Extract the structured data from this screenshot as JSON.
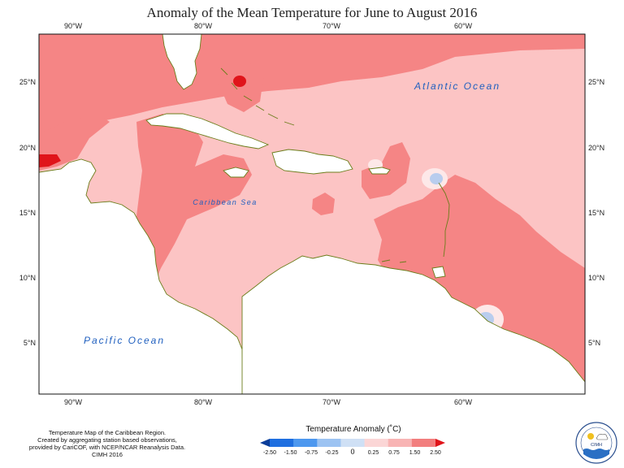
{
  "title": "Anomaly of the Mean Temperature for June to August 2016",
  "axes": {
    "lon_ticks": [
      "90°W",
      "80°W",
      "70°W",
      "60°W"
    ],
    "lat_ticks": [
      "25°N",
      "20°N",
      "15°N",
      "10°N",
      "5°N"
    ]
  },
  "labels": {
    "atlantic": "Atlantic Ocean",
    "caribbean": "Caribbean Sea",
    "pacific": "Pacific Ocean"
  },
  "footer": {
    "line1": "Temperature Map of the Caribbean Region.",
    "line2": "Created by aggregating station based observations,",
    "line3": "provided by CariCOF, with NCEP/NCAR Reanalysis Data.",
    "line4": "CIMH 2016"
  },
  "colorbar": {
    "title": "Temperature Anomaly (˚C)",
    "ticks": [
      "-2.50",
      "-1.50",
      "-0.75",
      "-0.25",
      "0",
      "0.25",
      "0.75",
      "1.50",
      "2.50"
    ],
    "colors": [
      "#0a3d99",
      "#1f6fe0",
      "#4d98ef",
      "#9cc3f2",
      "#cfe0f5",
      "#fbd6d6",
      "#f8b4b4",
      "#f27e7e",
      "#e0141a"
    ]
  },
  "logo": {
    "text": "CIMH"
  },
  "colors": {
    "land_outline": "#6b7d1a",
    "anomaly_light": "#fcc4c4",
    "anomaly_medium": "#f58585",
    "anomaly_strong": "#e0141a",
    "anomaly_cool": "#b9cdee",
    "land": "#ffffff"
  }
}
